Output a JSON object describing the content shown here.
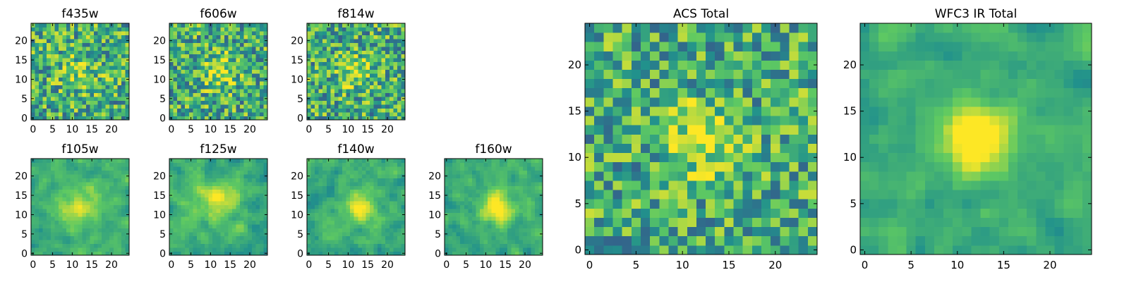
{
  "figure": {
    "colormap": "viridis",
    "colormap_stops": [
      "#440154",
      "#3b528b",
      "#21918c",
      "#5ec962",
      "#fde725"
    ]
  },
  "chart_data": [
    {
      "type": "heatmap",
      "title": "f435w",
      "grid": [
        25,
        25
      ],
      "xticks": [
        0,
        5,
        10,
        15,
        20
      ],
      "yticks": [
        0,
        5,
        10,
        15,
        20
      ],
      "xlim": [
        -0.5,
        24.5
      ],
      "ylim": [
        -0.5,
        24.5
      ],
      "seed": 11,
      "noise": 0.32,
      "peak": 0.15,
      "smooth": 0,
      "source_center": [
        12,
        12
      ],
      "source_width": 4
    },
    {
      "type": "heatmap",
      "title": "f606w",
      "grid": [
        25,
        25
      ],
      "xticks": [
        0,
        5,
        10,
        15,
        20
      ],
      "yticks": [
        0,
        5,
        10,
        15,
        20
      ],
      "xlim": [
        -0.5,
        24.5
      ],
      "ylim": [
        -0.5,
        24.5
      ],
      "seed": 23,
      "noise": 0.32,
      "peak": 0.3,
      "smooth": 0,
      "source_center": [
        12,
        12
      ],
      "source_width": 3
    },
    {
      "type": "heatmap",
      "title": "f814w",
      "grid": [
        25,
        25
      ],
      "xticks": [
        0,
        5,
        10,
        15,
        20
      ],
      "yticks": [
        0,
        5,
        10,
        15,
        20
      ],
      "xlim": [
        -0.5,
        24.5
      ],
      "ylim": [
        -0.5,
        24.5
      ],
      "seed": 37,
      "noise": 0.32,
      "peak": 0.25,
      "smooth": 0,
      "source_center": [
        12,
        12
      ],
      "source_width": 3
    },
    {
      "type": "heatmap",
      "title": "f105w",
      "grid": [
        25,
        25
      ],
      "xticks": [
        0,
        5,
        10,
        15,
        20
      ],
      "yticks": [
        0,
        5,
        10,
        15,
        20
      ],
      "xlim": [
        -0.5,
        24.5
      ],
      "ylim": [
        -0.5,
        24.5
      ],
      "seed": 41,
      "noise": 0.26,
      "peak": 0.3,
      "smooth": 1,
      "source_center": [
        12,
        12
      ],
      "source_width": 4
    },
    {
      "type": "heatmap",
      "title": "f125w",
      "grid": [
        25,
        25
      ],
      "xticks": [
        0,
        5,
        10,
        15,
        20
      ],
      "yticks": [
        0,
        5,
        10,
        15,
        20
      ],
      "xlim": [
        -0.5,
        24.5
      ],
      "ylim": [
        -0.5,
        24.5
      ],
      "seed": 53,
      "noise": 0.28,
      "peak": 0.3,
      "smooth": 1,
      "source_center": [
        12,
        14
      ],
      "source_width": 4
    },
    {
      "type": "heatmap",
      "title": "f140w",
      "grid": [
        25,
        25
      ],
      "xticks": [
        0,
        5,
        10,
        15,
        20
      ],
      "yticks": [
        0,
        5,
        10,
        15,
        20
      ],
      "xlim": [
        -0.5,
        24.5
      ],
      "ylim": [
        -0.5,
        24.5
      ],
      "seed": 67,
      "noise": 0.28,
      "peak": 0.35,
      "smooth": 1,
      "source_center": [
        13,
        12
      ],
      "source_width": 3
    },
    {
      "type": "heatmap",
      "title": "f160w",
      "grid": [
        25,
        25
      ],
      "xticks": [
        0,
        5,
        10,
        15,
        20
      ],
      "yticks": [
        0,
        5,
        10,
        15,
        20
      ],
      "xlim": [
        -0.5,
        24.5
      ],
      "ylim": [
        -0.5,
        24.5
      ],
      "seed": 79,
      "noise": 0.26,
      "peak": 0.45,
      "smooth": 1,
      "source_center": [
        13,
        12
      ],
      "source_width": 3
    },
    {
      "type": "heatmap",
      "title": "ACS Total",
      "grid": [
        25,
        25
      ],
      "xticks": [
        0,
        5,
        10,
        15,
        20
      ],
      "yticks": [
        0,
        5,
        10,
        15,
        20
      ],
      "xlim": [
        -0.5,
        24.5
      ],
      "ylim": [
        -0.5,
        24.5
      ],
      "seed": 97,
      "noise": 0.3,
      "peak": 0.35,
      "smooth": 0,
      "source_center": [
        12,
        12
      ],
      "source_width": 2.5
    },
    {
      "type": "heatmap",
      "title": "WFC3 IR Total",
      "grid": [
        25,
        25
      ],
      "xticks": [
        0,
        5,
        10,
        15,
        20
      ],
      "yticks": [
        0,
        5,
        10,
        15,
        20
      ],
      "xlim": [
        -0.5,
        24.5
      ],
      "ylim": [
        -0.5,
        24.5
      ],
      "seed": 113,
      "noise": 0.24,
      "peak": 0.55,
      "smooth": 1,
      "source_center": [
        12,
        12
      ],
      "source_width": 2.5
    }
  ]
}
